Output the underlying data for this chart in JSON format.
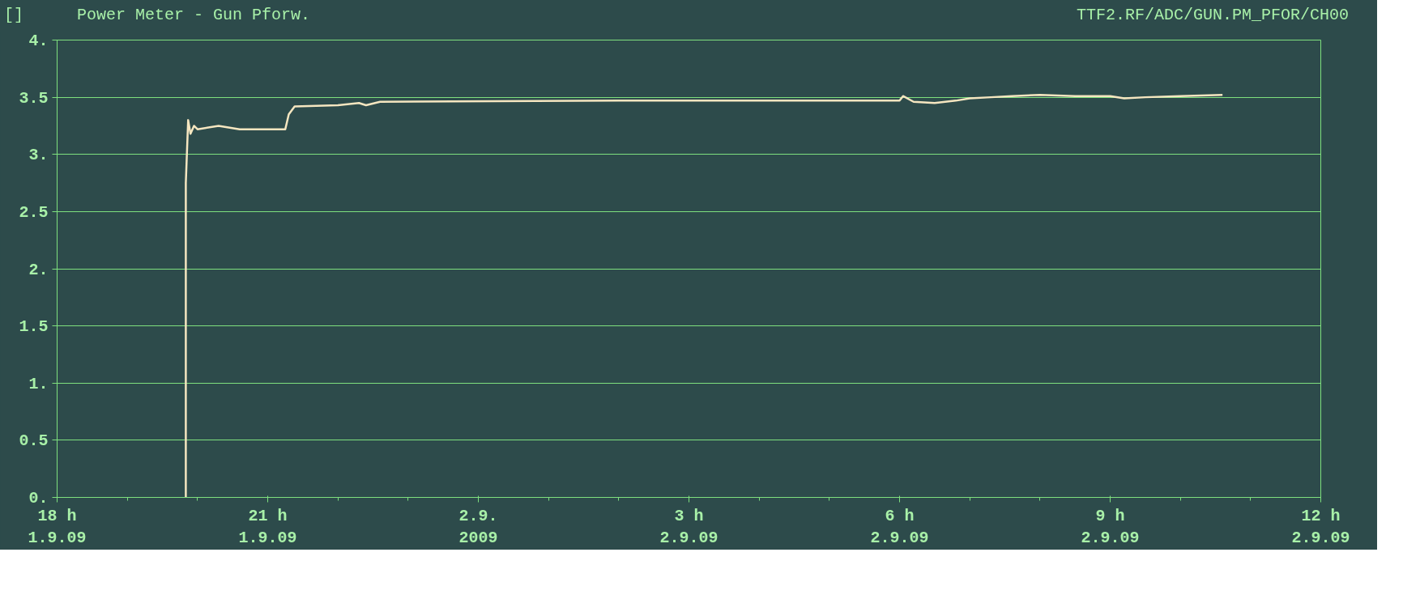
{
  "chart_data": {
    "type": "line",
    "title": "Power Meter - Gun Pforw.",
    "ylabel": "[]",
    "annotations": [
      "TTF2.RF/ADC/GUN.PM_PFOR/CH00"
    ],
    "x": [
      "2009-09-01T19:50",
      "2009-09-01T19:50",
      "2009-09-01T19:52",
      "2009-09-01T19:54",
      "2009-09-01T19:57",
      "2009-09-01T20:00",
      "2009-09-01T20:18",
      "2009-09-01T20:36",
      "2009-09-01T21:15",
      "2009-09-01T21:18",
      "2009-09-01T21:23",
      "2009-09-01T22:00",
      "2009-09-01T22:18",
      "2009-09-01T22:24",
      "2009-09-01T22:36",
      "2009-09-02T02:00",
      "2009-09-02T06:00",
      "2009-09-02T06:03",
      "2009-09-02T06:12",
      "2009-09-02T06:30",
      "2009-09-02T06:48",
      "2009-09-02T07:00",
      "2009-09-02T07:18",
      "2009-09-02T07:36",
      "2009-09-02T08:00",
      "2009-09-02T08:30",
      "2009-09-02T09:00",
      "2009-09-02T09:12",
      "2009-09-02T09:30",
      "2009-09-02T10:00",
      "2009-09-02T10:36"
    ],
    "series": [
      {
        "color": "#f5e6c0",
        "values": [
          0,
          2.75,
          3.3,
          3.18,
          3.25,
          3.22,
          3.25,
          3.22,
          3.22,
          3.35,
          3.42,
          3.43,
          3.45,
          3.43,
          3.46,
          3.47,
          3.47,
          3.51,
          3.46,
          3.45,
          3.47,
          3.49,
          3.5,
          3.51,
          3.52,
          3.51,
          3.51,
          3.49,
          3.5,
          3.51,
          3.52
        ]
      }
    ],
    "xlim": [
      "2009-09-01T18:00",
      "2009-09-02T12:00"
    ],
    "xticks": [
      {
        "value": "2009-09-01T18:00",
        "label": "18 h\n1.9.09"
      },
      {
        "value": "2009-09-01T21:00",
        "label": "21 h\n1.9.09"
      },
      {
        "value": "2009-09-02T00:00",
        "label": "2.9.\n2009"
      },
      {
        "value": "2009-09-02T03:00",
        "label": "3 h\n2.9.09"
      },
      {
        "value": "2009-09-02T06:00",
        "label": "6 h\n2.9.09"
      },
      {
        "value": "2009-09-02T09:00",
        "label": "9 h\n2.9.09"
      },
      {
        "value": "2009-09-02T12:00",
        "label": "12 h\n2.9.09"
      }
    ],
    "ylim": [
      0,
      4
    ],
    "yticks": [
      {
        "value": 0,
        "label": "0."
      },
      0.5,
      {
        "value": 1,
        "label": "1."
      },
      1.5,
      {
        "value": 2,
        "label": "2."
      },
      2.5,
      {
        "value": 3,
        "label": "3."
      },
      3.5,
      {
        "value": 4,
        "label": "4."
      }
    ],
    "grid": "y",
    "line_style": "solid",
    "marker": "none"
  }
}
